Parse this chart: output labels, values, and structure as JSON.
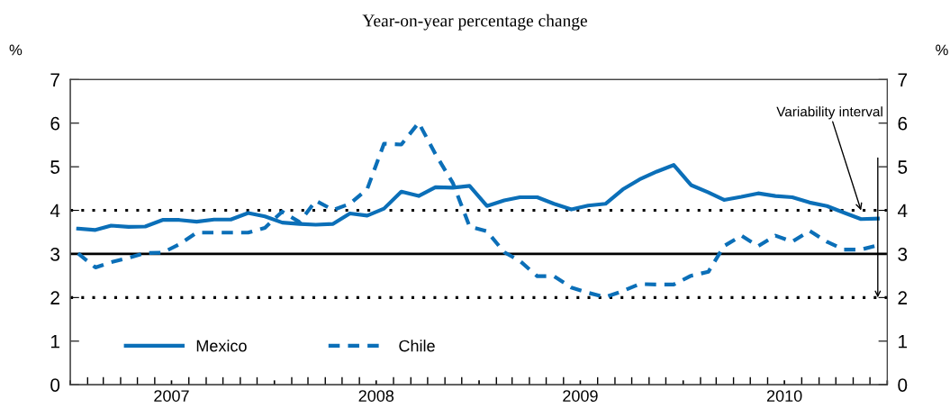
{
  "chart_data": {
    "type": "line",
    "subtitle": "Year-on-year percentage change",
    "ylabel": "%",
    "y2label": "%",
    "x": [
      "2007-01-15",
      "2007-02-15",
      "2007-03-15",
      "2007-04-15",
      "2007-05-15",
      "2007-06-15",
      "2007-07-15",
      "2007-08-15",
      "2007-09-15",
      "2007-10-15",
      "2007-11-15",
      "2007-12-15",
      "2008-01-15",
      "2008-02-15",
      "2008-03-15",
      "2008-04-15",
      "2008-05-15",
      "2008-06-15",
      "2008-07-15",
      "2008-08-15",
      "2008-09-15",
      "2008-10-15",
      "2008-11-15",
      "2008-12-15",
      "2009-01-15",
      "2009-02-15",
      "2009-03-15",
      "2009-04-15",
      "2009-05-15",
      "2009-06-15",
      "2009-07-15",
      "2009-08-15",
      "2009-09-15",
      "2009-10-15",
      "2009-11-15",
      "2009-12-15",
      "2010-01-15",
      "2010-02-15",
      "2010-03-15",
      "2010-04-15",
      "2010-05-15",
      "2010-06-15",
      "2010-07-15",
      "2010-08-15",
      "2010-09-15",
      "2010-10-15",
      "2010-11-15",
      "2010-12-15"
    ],
    "series": [
      {
        "name": "Mexico",
        "color": "#0b6fb8",
        "line_style": "solid",
        "values": [
          3.58,
          3.55,
          3.65,
          3.62,
          3.63,
          3.78,
          3.78,
          3.74,
          3.79,
          3.79,
          3.94,
          3.86,
          3.72,
          3.69,
          3.67,
          3.69,
          3.93,
          3.88,
          4.04,
          4.43,
          4.33,
          4.53,
          4.52,
          4.56,
          4.1,
          4.23,
          4.3,
          4.3,
          4.15,
          4.02,
          4.11,
          4.15,
          4.48,
          4.71,
          4.89,
          5.04,
          4.58,
          4.41,
          4.24,
          4.31,
          4.39,
          4.33,
          4.3,
          4.18,
          4.1,
          3.95,
          3.8,
          3.81
        ]
      },
      {
        "name": "Chile",
        "color": "#0b6fb8",
        "line_style": "dashed",
        "values": [
          3.01,
          2.69,
          2.81,
          2.91,
          3.02,
          3.03,
          3.22,
          3.49,
          3.49,
          3.49,
          3.49,
          3.6,
          3.97,
          3.73,
          4.22,
          4.01,
          4.15,
          4.49,
          5.53,
          5.51,
          6.01,
          5.29,
          4.63,
          3.63,
          3.52,
          3.04,
          2.84,
          2.49,
          2.49,
          2.23,
          2.11,
          2.01,
          2.15,
          2.31,
          2.3,
          2.3,
          2.5,
          2.59,
          3.18,
          3.42,
          3.18,
          3.42,
          3.28,
          3.53,
          3.28,
          3.1,
          3.1,
          3.2
        ]
      }
    ],
    "xlim": [
      "2007-01-01",
      "2011-01-01"
    ],
    "xticks": [
      {
        "value": "2007-01-01",
        "label": null
      },
      {
        "value": "2007-07-01",
        "label": "2007"
      },
      {
        "value": "2008-01-01",
        "label": null
      },
      {
        "value": "2008-07-01",
        "label": "2008"
      },
      {
        "value": "2009-01-01",
        "label": null
      },
      {
        "value": "2009-07-01",
        "label": "2009"
      },
      {
        "value": "2010-01-01",
        "label": null
      },
      {
        "value": "2010-07-01",
        "label": "2010"
      },
      {
        "value": "2011-01-01",
        "label": null
      }
    ],
    "ylim": [
      0,
      7
    ],
    "yticks": [
      0,
      1,
      2,
      3,
      4,
      5,
      6,
      7
    ],
    "y2lim": [
      0,
      7
    ],
    "y2ticks": [
      0,
      1,
      2,
      3,
      4,
      5,
      6,
      7
    ],
    "ref_lines": [
      {
        "axis": "y",
        "value": 3,
        "color": "#000000",
        "line_style": "solid"
      },
      {
        "axis": "y",
        "value": 4,
        "color": "#000000",
        "line_style": "dotted"
      },
      {
        "axis": "y",
        "value": 2,
        "color": "#000000",
        "line_style": "dotted"
      }
    ],
    "annotations": [
      {
        "text": "Variability interval",
        "x": "2010-11-15",
        "y": 4
      }
    ],
    "legend": "bottom left",
    "grid": false
  }
}
